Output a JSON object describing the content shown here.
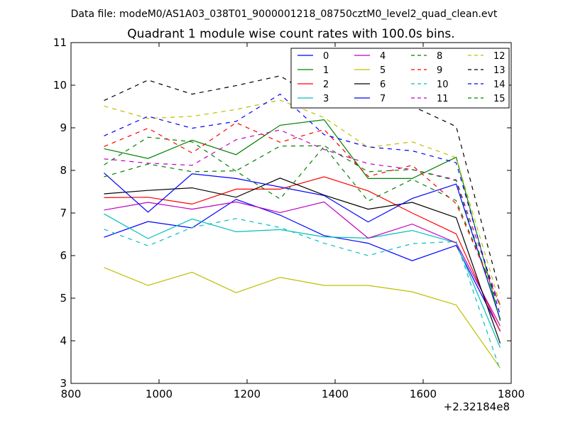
{
  "header": {
    "file_label": "Data file: modeM0/AS1A03_038T01_9000001218_08750cztM0_level2_quad_clean.evt"
  },
  "chart_data": {
    "type": "line",
    "title": "Quadrant 1 module wise count rates with 100.0s bins.",
    "xlabel": "",
    "ylabel": "",
    "x_offset_label": "+2.32184e8",
    "xlim": [
      800,
      1800
    ],
    "ylim": [
      3,
      11
    ],
    "xticks": [
      800,
      1000,
      1200,
      1400,
      1600,
      1800
    ],
    "yticks": [
      3,
      4,
      5,
      6,
      7,
      8,
      9,
      10,
      11
    ],
    "xtick_labels": [
      "800",
      "1000",
      "1200",
      "1400",
      "1600",
      "1800"
    ],
    "ytick_labels": [
      "3",
      "4",
      "5",
      "6",
      "7",
      "8",
      "9",
      "10",
      "11"
    ],
    "grid": false,
    "legend_position": "top-right",
    "x": [
      875,
      975,
      1075,
      1175,
      1275,
      1375,
      1475,
      1575,
      1675,
      1775
    ],
    "series": [
      {
        "name": "0",
        "color": "#0000ff",
        "dash": "solid",
        "values": [
          6.43,
          6.8,
          6.65,
          7.32,
          6.95,
          6.47,
          6.29,
          5.88,
          6.24,
          4.23
        ]
      },
      {
        "name": "1",
        "color": "#008000",
        "dash": "solid",
        "values": [
          8.51,
          8.28,
          8.71,
          8.37,
          9.06,
          9.19,
          7.81,
          7.81,
          8.31,
          4.47
        ]
      },
      {
        "name": "2",
        "color": "#ff0000",
        "dash": "solid",
        "values": [
          7.36,
          7.37,
          7.21,
          7.56,
          7.56,
          7.85,
          7.52,
          7.0,
          6.51,
          4.22
        ]
      },
      {
        "name": "3",
        "color": "#00bfbf",
        "dash": "solid",
        "values": [
          6.98,
          6.4,
          6.86,
          6.56,
          6.61,
          6.44,
          6.41,
          6.59,
          6.3,
          3.84
        ]
      },
      {
        "name": "4",
        "color": "#bf00bf",
        "dash": "solid",
        "values": [
          7.07,
          7.25,
          7.09,
          7.26,
          7.01,
          7.26,
          6.41,
          6.74,
          6.3,
          4.35
        ]
      },
      {
        "name": "5",
        "color": "#bfbf00",
        "dash": "solid",
        "values": [
          5.72,
          5.3,
          5.61,
          5.13,
          5.49,
          5.3,
          5.3,
          5.15,
          4.84,
          3.36
        ]
      },
      {
        "name": "6",
        "color": "#000000",
        "dash": "solid",
        "values": [
          7.45,
          7.53,
          7.59,
          7.37,
          7.82,
          7.42,
          7.09,
          7.25,
          6.89,
          3.94
        ]
      },
      {
        "name": "7",
        "color": "#0000ff",
        "dash": "solid",
        "values": [
          7.94,
          7.02,
          7.92,
          7.81,
          7.61,
          7.41,
          6.79,
          7.34,
          7.68,
          4.5
        ]
      },
      {
        "name": "8",
        "color": "#008000",
        "dash": "dashed",
        "values": [
          8.13,
          8.78,
          8.67,
          7.98,
          7.33,
          8.56,
          7.28,
          7.79,
          7.29,
          4.82
        ]
      },
      {
        "name": "9",
        "color": "#ff0000",
        "dash": "dashed",
        "values": [
          8.56,
          8.99,
          8.41,
          9.12,
          8.66,
          8.96,
          7.86,
          8.12,
          7.22,
          4.83
        ]
      },
      {
        "name": "10",
        "color": "#00bfbf",
        "dash": "dashed",
        "values": [
          6.62,
          6.23,
          6.66,
          6.87,
          6.66,
          6.29,
          6.0,
          6.28,
          6.33,
          3.31
        ]
      },
      {
        "name": "11",
        "color": "#bf00bf",
        "dash": "dashed",
        "values": [
          8.27,
          8.17,
          8.12,
          8.72,
          8.95,
          8.49,
          8.16,
          8.02,
          7.78,
          4.79
        ]
      },
      {
        "name": "12",
        "color": "#bfbf00",
        "dash": "dashed",
        "values": [
          9.51,
          9.22,
          9.27,
          9.43,
          9.65,
          9.24,
          8.54,
          8.67,
          8.3,
          4.85
        ]
      },
      {
        "name": "13",
        "color": "#000000",
        "dash": "dashed",
        "values": [
          9.64,
          10.12,
          9.79,
          9.99,
          10.22,
          9.58,
          9.49,
          9.51,
          9.03,
          5.12
        ]
      },
      {
        "name": "14",
        "color": "#0000ff",
        "dash": "dashed",
        "values": [
          8.81,
          9.27,
          8.99,
          9.15,
          9.79,
          8.84,
          8.55,
          8.46,
          8.18,
          4.61
        ]
      },
      {
        "name": "15",
        "color": "#008000",
        "dash": "dashed",
        "values": [
          7.85,
          8.15,
          7.97,
          7.99,
          8.57,
          8.58,
          7.97,
          8.02,
          7.76,
          4.51
        ]
      }
    ]
  }
}
